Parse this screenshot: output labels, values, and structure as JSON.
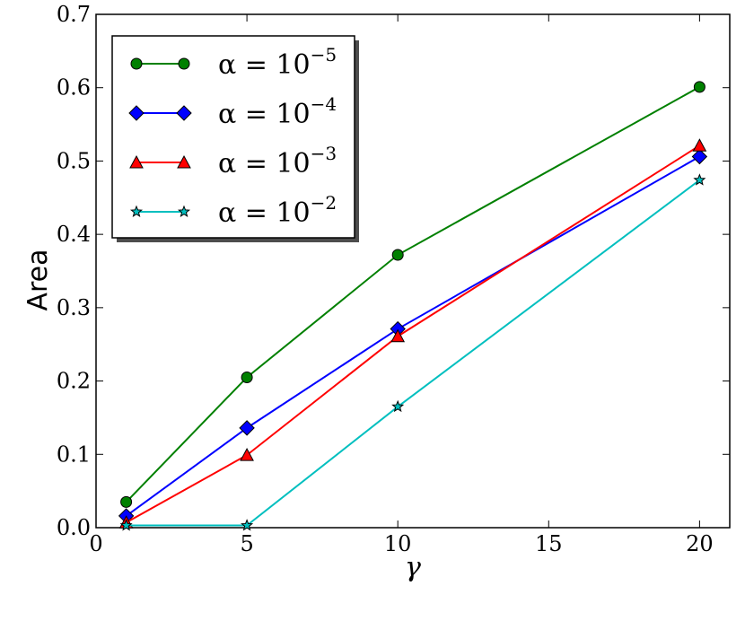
{
  "chart_data": {
    "type": "line",
    "title": "",
    "xlabel": "γ",
    "ylabel": "Area",
    "xlim": [
      0,
      21
    ],
    "ylim": [
      0.0,
      0.7
    ],
    "xticks": [
      0,
      5,
      10,
      15,
      20
    ],
    "xtick_labels": [
      "0",
      "5",
      "10",
      "15",
      "20"
    ],
    "yticks": [
      0.0,
      0.1,
      0.2,
      0.3,
      0.4,
      0.5,
      0.6,
      0.7
    ],
    "ytick_labels": [
      "0.0",
      "0.1",
      "0.2",
      "0.3",
      "0.4",
      "0.5",
      "0.6",
      "0.7"
    ],
    "grid": false,
    "legend_position": "top-left",
    "x": [
      1,
      5,
      10,
      20
    ],
    "series": [
      {
        "name": "α = 10⁻⁵",
        "name_base": "α = 10",
        "name_exp": "−5",
        "color": "#008000",
        "marker": "circle",
        "values": [
          0.035,
          0.205,
          0.372,
          0.601
        ]
      },
      {
        "name": "α = 10⁻⁴",
        "name_base": "α = 10",
        "name_exp": "−4",
        "color": "#0000ff",
        "marker": "diamond",
        "values": [
          0.016,
          0.136,
          0.271,
          0.506
        ]
      },
      {
        "name": "α = 10⁻³",
        "name_base": "α = 10",
        "name_exp": "−3",
        "color": "#ff0000",
        "marker": "triangle",
        "values": [
          0.007,
          0.099,
          0.261,
          0.521
        ]
      },
      {
        "name": "α = 10⁻²",
        "name_base": "α = 10",
        "name_exp": "−2",
        "color": "#00bfbf",
        "marker": "star",
        "values": [
          0.003,
          0.003,
          0.165,
          0.474
        ]
      }
    ]
  }
}
